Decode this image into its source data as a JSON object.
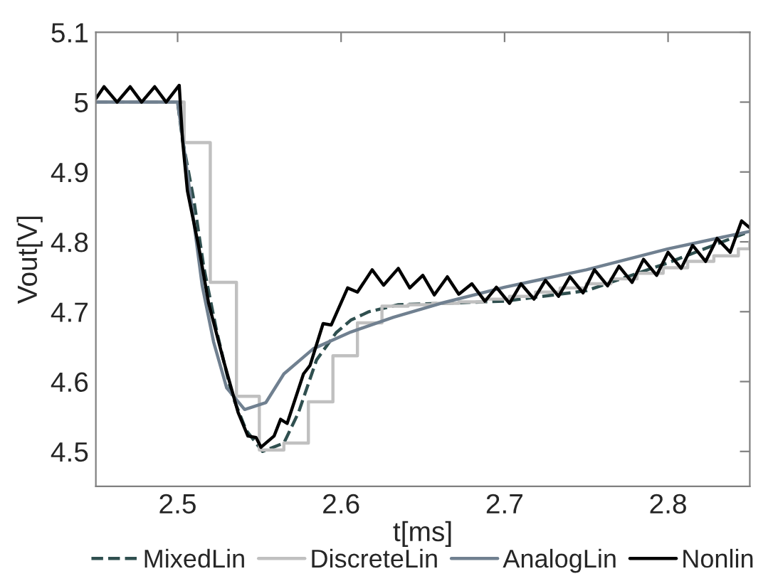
{
  "chart_data": {
    "type": "line",
    "xlabel": "t[ms]",
    "ylabel": "Vout[V]",
    "xlim": [
      2.45,
      2.85
    ],
    "xticks": [
      2.5,
      2.6,
      2.7,
      2.8
    ],
    "ylim": [
      4.45,
      5.1
    ],
    "yticks": [
      4.5,
      4.6,
      4.7,
      4.8,
      4.9,
      5,
      5.1
    ],
    "grid": false,
    "legend": "bottom",
    "series": [
      {
        "name": "MixedLin",
        "color": "#2f4f4f",
        "line_style": "dashed",
        "x": [
          2.45,
          2.5,
          2.503,
          2.51,
          2.516,
          2.524,
          2.533,
          2.542,
          2.552,
          2.565,
          2.574,
          2.585,
          2.597,
          2.606,
          2.617,
          2.635,
          2.661,
          2.7,
          2.75,
          2.8,
          2.85
        ],
        "values": [
          5.0,
          5.0,
          4.946,
          4.859,
          4.764,
          4.671,
          4.583,
          4.53,
          4.5,
          4.512,
          4.556,
          4.631,
          4.67,
          4.688,
          4.7,
          4.71,
          4.712,
          4.715,
          4.73,
          4.77,
          4.815
        ]
      },
      {
        "name": "DiscreteLin",
        "color": "#c0c0c0",
        "type": "step",
        "x": [
          2.45,
          2.504,
          2.52,
          2.536,
          2.55,
          2.565,
          2.58,
          2.595,
          2.61,
          2.625,
          2.641,
          2.656,
          2.672,
          2.688,
          2.703,
          2.719,
          2.734,
          2.75,
          2.765,
          2.781,
          2.797,
          2.812,
          2.828,
          2.843,
          2.85
        ],
        "values": [
          5.0,
          4.942,
          4.742,
          4.579,
          4.502,
          4.512,
          4.571,
          4.637,
          4.684,
          4.708,
          4.71,
          4.712,
          4.714,
          4.718,
          4.722,
          4.728,
          4.734,
          4.74,
          4.747,
          4.755,
          4.763,
          4.772,
          4.78,
          4.79,
          4.8
        ]
      },
      {
        "name": "AnalogLin",
        "color": "#708090",
        "line_style": "solid",
        "x": [
          2.45,
          2.5,
          2.503,
          2.509,
          2.515,
          2.522,
          2.53,
          2.541,
          2.554,
          2.565,
          2.583,
          2.606,
          2.632,
          2.661,
          2.7,
          2.75,
          2.8,
          2.85
        ],
        "values": [
          5.0,
          5.0,
          4.95,
          4.845,
          4.738,
          4.657,
          4.591,
          4.56,
          4.57,
          4.611,
          4.647,
          4.671,
          4.692,
          4.712,
          4.735,
          4.76,
          4.79,
          4.815
        ]
      },
      {
        "name": "Nonlin",
        "color": "#000000",
        "line_style": "solid",
        "x": [
          2.45,
          2.455,
          2.463,
          2.471,
          2.478,
          2.486,
          2.493,
          2.501,
          2.503,
          2.506,
          2.513,
          2.519,
          2.528,
          2.537,
          2.543,
          2.548,
          2.551,
          2.559,
          2.563,
          2.567,
          2.577,
          2.581,
          2.589,
          2.594,
          2.604,
          2.61,
          2.619,
          2.626,
          2.635,
          2.642,
          2.65,
          2.657,
          2.665,
          2.672,
          2.68,
          2.688,
          2.695,
          2.703,
          2.71,
          2.718,
          2.725,
          2.733,
          2.74,
          2.748,
          2.755,
          2.763,
          2.77,
          2.778,
          2.785,
          2.793,
          2.8,
          2.808,
          2.815,
          2.823,
          2.83,
          2.838,
          2.845,
          2.85
        ],
        "values": [
          5.005,
          5.022,
          5.0,
          5.022,
          5.0,
          5.022,
          5.0,
          5.024,
          4.946,
          4.873,
          4.792,
          4.712,
          4.631,
          4.556,
          4.522,
          4.52,
          4.506,
          4.522,
          4.546,
          4.54,
          4.611,
          4.623,
          4.683,
          4.681,
          4.734,
          4.728,
          4.76,
          4.738,
          4.762,
          4.734,
          4.752,
          4.724,
          4.75,
          4.725,
          4.74,
          4.715,
          4.735,
          4.712,
          4.74,
          4.718,
          4.745,
          4.722,
          4.75,
          4.727,
          4.76,
          4.737,
          4.765,
          4.742,
          4.775,
          4.752,
          4.785,
          4.762,
          4.795,
          4.772,
          4.805,
          4.785,
          4.83,
          4.82
        ]
      }
    ]
  }
}
